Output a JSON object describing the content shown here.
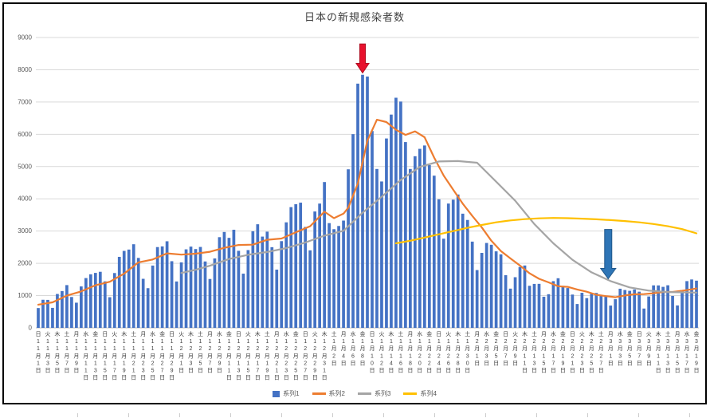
{
  "chart_data": {
    "type": "bar",
    "combo": "bar+line",
    "title": "日本の新規感染者数",
    "grid": true,
    "legend_position": "bottom",
    "y_axis": {
      "min": 0,
      "max": 9000,
      "step": 1000,
      "ticks": [
        "0",
        "1000",
        "2000",
        "3000",
        "4000",
        "5000",
        "6000",
        "7000",
        "8000",
        "9000"
      ]
    },
    "x_axis": {
      "tick_interval_days": 2,
      "ticks": [
        {
          "w": "日",
          "d": "11月1日"
        },
        {
          "w": "火",
          "d": "11月3日"
        },
        {
          "w": "木",
          "d": "11月5日"
        },
        {
          "w": "土",
          "d": "11月7日"
        },
        {
          "w": "月",
          "d": "11月9日"
        },
        {
          "w": "水",
          "d": "11月11日"
        },
        {
          "w": "金",
          "d": "11月13日"
        },
        {
          "w": "日",
          "d": "11月15日"
        },
        {
          "w": "火",
          "d": "11月17日"
        },
        {
          "w": "木",
          "d": "11月19日"
        },
        {
          "w": "土",
          "d": "11月21日"
        },
        {
          "w": "月",
          "d": "11月23日"
        },
        {
          "w": "水",
          "d": "11月25日"
        },
        {
          "w": "金",
          "d": "11月27日"
        },
        {
          "w": "日",
          "d": "11月29日"
        },
        {
          "w": "火",
          "d": "12月1日"
        },
        {
          "w": "木",
          "d": "12月3日"
        },
        {
          "w": "土",
          "d": "12月5日"
        },
        {
          "w": "月",
          "d": "12月7日"
        },
        {
          "w": "水",
          "d": "12月9日"
        },
        {
          "w": "金",
          "d": "12月11日"
        },
        {
          "w": "日",
          "d": "12月13日"
        },
        {
          "w": "火",
          "d": "12月15日"
        },
        {
          "w": "木",
          "d": "12月17日"
        },
        {
          "w": "土",
          "d": "12月19日"
        },
        {
          "w": "月",
          "d": "12月21日"
        },
        {
          "w": "水",
          "d": "12月23日"
        },
        {
          "w": "金",
          "d": "12月25日"
        },
        {
          "w": "日",
          "d": "12月27日"
        },
        {
          "w": "火",
          "d": "12月29日"
        },
        {
          "w": "木",
          "d": "12月31日"
        },
        {
          "w": "土",
          "d": "1月2日"
        },
        {
          "w": "月",
          "d": "1月4日"
        },
        {
          "w": "水",
          "d": "1月6日"
        },
        {
          "w": "金",
          "d": "1月8日"
        },
        {
          "w": "日",
          "d": "1月10日"
        },
        {
          "w": "火",
          "d": "1月12日"
        },
        {
          "w": "木",
          "d": "1月14日"
        },
        {
          "w": "土",
          "d": "1月16日"
        },
        {
          "w": "月",
          "d": "1月18日"
        },
        {
          "w": "水",
          "d": "1月20日"
        },
        {
          "w": "金",
          "d": "1月22日"
        },
        {
          "w": "日",
          "d": "1月24日"
        },
        {
          "w": "火",
          "d": "1月26日"
        },
        {
          "w": "木",
          "d": "1月28日"
        },
        {
          "w": "土",
          "d": "1月30日"
        },
        {
          "w": "月",
          "d": "2月1日"
        },
        {
          "w": "水",
          "d": "2月3日"
        },
        {
          "w": "金",
          "d": "2月5日"
        },
        {
          "w": "日",
          "d": "2月7日"
        },
        {
          "w": "火",
          "d": "2月9日"
        },
        {
          "w": "木",
          "d": "2月11日"
        },
        {
          "w": "土",
          "d": "2月13日"
        },
        {
          "w": "月",
          "d": "2月15日"
        },
        {
          "w": "水",
          "d": "2月17日"
        },
        {
          "w": "金",
          "d": "2月19日"
        },
        {
          "w": "日",
          "d": "2月21日"
        },
        {
          "w": "火",
          "d": "2月23日"
        },
        {
          "w": "木",
          "d": "2月25日"
        },
        {
          "w": "土",
          "d": "2月27日"
        },
        {
          "w": "月",
          "d": "3月1日"
        },
        {
          "w": "水",
          "d": "3月3日"
        },
        {
          "w": "金",
          "d": "3月5日"
        },
        {
          "w": "日",
          "d": "3月7日"
        },
        {
          "w": "火",
          "d": "3月9日"
        },
        {
          "w": "木",
          "d": "3月11日"
        },
        {
          "w": "土",
          "d": "3月13日"
        },
        {
          "w": "月",
          "d": "3月15日"
        },
        {
          "w": "水",
          "d": "3月17日"
        },
        {
          "w": "金",
          "d": "3月19日"
        }
      ]
    },
    "series": [
      {
        "name": "系列1",
        "type": "bar",
        "color": "#4472C4",
        "values": [
          614,
          871,
          867,
          620,
          1050,
          1141,
          1325,
          957,
          780,
          1284,
          1543,
          1660,
          1704,
          1738,
          1441,
          950,
          1699,
          2201,
          2386,
          2427,
          2592,
          2168,
          1520,
          1230,
          1931,
          2504,
          2525,
          2684,
          2066,
          1438,
          2030,
          2434,
          2518,
          2442,
          2508,
          2058,
          1515,
          2152,
          2811,
          2972,
          2790,
          3041,
          2388,
          1680,
          2410,
          2994,
          3211,
          2829,
          2982,
          2501,
          1805,
          2688,
          3271,
          3742,
          3832,
          3881,
          3127,
          2403,
          3607,
          3852,
          4520,
          3246,
          3059,
          3158,
          3325,
          4915,
          6004,
          7570,
          7844,
          7790,
          6102,
          4925,
          4538,
          5870,
          6610,
          7133,
          7014,
          5759,
          4925,
          5320,
          5549,
          5653,
          5045,
          4717,
          3985,
          2764,
          3853,
          3973,
          4133,
          3539,
          3344,
          2673,
          1791,
          2324,
          2631,
          2576,
          2372,
          2279,
          1632,
          1216,
          1570,
          1887,
          1933,
          1304,
          1362,
          1364,
          965,
          1043,
          1448,
          1538,
          1301,
          1234,
          1032,
          739,
          1087,
          922,
          1076,
          1083,
          999,
          988,
          691,
          888,
          1213,
          1173,
          1148,
          1190,
          1121,
          599,
          973,
          1317,
          1316,
          1271,
          1320,
          989,
          695,
          1133,
          1449,
          1500,
          1463
        ]
      },
      {
        "name": "系列2",
        "type": "line",
        "color": "#ED7D31",
        "points": [
          [
            0,
            720
          ],
          [
            3,
            790
          ],
          [
            6,
            1000
          ],
          [
            9,
            1130
          ],
          [
            12,
            1320
          ],
          [
            15,
            1430
          ],
          [
            18,
            1680
          ],
          [
            21,
            2030
          ],
          [
            24,
            2120
          ],
          [
            27,
            2310
          ],
          [
            30,
            2270
          ],
          [
            33,
            2300
          ],
          [
            36,
            2360
          ],
          [
            39,
            2480
          ],
          [
            42,
            2570
          ],
          [
            45,
            2580
          ],
          [
            48,
            2730
          ],
          [
            51,
            2770
          ],
          [
            54,
            2960
          ],
          [
            57,
            3150
          ],
          [
            60,
            3600
          ],
          [
            62,
            3400
          ],
          [
            64,
            3540
          ],
          [
            65,
            3725
          ],
          [
            67,
            4470
          ],
          [
            69,
            5800
          ],
          [
            71,
            6450
          ],
          [
            73,
            6380
          ],
          [
            75,
            6140
          ],
          [
            77,
            5980
          ],
          [
            79,
            6090
          ],
          [
            81,
            5910
          ],
          [
            83,
            5280
          ],
          [
            85,
            4720
          ],
          [
            87,
            4285
          ],
          [
            89,
            3850
          ],
          [
            91,
            3470
          ],
          [
            93,
            3110
          ],
          [
            95,
            2700
          ],
          [
            97,
            2380
          ],
          [
            99,
            2150
          ],
          [
            101,
            1930
          ],
          [
            103,
            1690
          ],
          [
            105,
            1520
          ],
          [
            107,
            1410
          ],
          [
            109,
            1290
          ],
          [
            111,
            1270
          ],
          [
            113,
            1190
          ],
          [
            115,
            1120
          ],
          [
            117,
            1025
          ],
          [
            119,
            985
          ],
          [
            121,
            950
          ],
          [
            123,
            1005
          ],
          [
            125,
            1042
          ],
          [
            127,
            1047
          ],
          [
            129,
            1074
          ],
          [
            131,
            1112
          ],
          [
            133,
            1112
          ],
          [
            135,
            1149
          ],
          [
            137,
            1194
          ],
          [
            138,
            1221
          ]
        ]
      },
      {
        "name": "系列3",
        "type": "line",
        "color": "#A5A5A5",
        "points": [
          [
            30,
            1700
          ],
          [
            33,
            1800
          ],
          [
            36,
            1925
          ],
          [
            40,
            2133
          ],
          [
            44,
            2265
          ],
          [
            48,
            2351
          ],
          [
            52,
            2473
          ],
          [
            56,
            2645
          ],
          [
            60,
            2858
          ],
          [
            64,
            3010
          ],
          [
            68,
            3567
          ],
          [
            72,
            4062
          ],
          [
            76,
            4583
          ],
          [
            80,
            4986
          ],
          [
            84,
            5158
          ],
          [
            88,
            5171
          ],
          [
            92,
            5119
          ],
          [
            96,
            4532
          ],
          [
            100,
            3938
          ],
          [
            104,
            3218
          ],
          [
            108,
            2620
          ],
          [
            112,
            2110
          ],
          [
            116,
            1721
          ],
          [
            120,
            1450
          ],
          [
            124,
            1254
          ],
          [
            128,
            1154
          ],
          [
            132,
            1109
          ],
          [
            138,
            1093
          ]
        ]
      },
      {
        "name": "系列4",
        "type": "line",
        "color": "#FFC000",
        "points": [
          [
            75,
            2620
          ],
          [
            78,
            2700
          ],
          [
            81,
            2800
          ],
          [
            84,
            2900
          ],
          [
            87,
            3000
          ],
          [
            90,
            3100
          ],
          [
            93,
            3190
          ],
          [
            96,
            3270
          ],
          [
            99,
            3330
          ],
          [
            102,
            3370
          ],
          [
            105,
            3395
          ],
          [
            108,
            3408
          ],
          [
            111,
            3400
          ],
          [
            114,
            3385
          ],
          [
            117,
            3365
          ],
          [
            120,
            3340
          ],
          [
            123,
            3310
          ],
          [
            126,
            3270
          ],
          [
            129,
            3220
          ],
          [
            132,
            3150
          ],
          [
            135,
            3060
          ],
          [
            138,
            2930
          ]
        ]
      }
    ],
    "annotations": [
      {
        "id": "red-down-arrow",
        "shape": "block-arrow-down",
        "fill": "#e8112d",
        "stroke": "#b00c20",
        "day_index": 68,
        "value_top": 8800,
        "value_tip": 7900,
        "shaft_w": 7,
        "head_w": 16,
        "head_len": 12
      },
      {
        "id": "blue-down-arrow",
        "shape": "block-arrow-down",
        "fill": "#2e75b6",
        "stroke": "#20578a",
        "day_index": 119.5,
        "value_top": 3050,
        "value_tip": 1520,
        "shaft_w": 9,
        "head_w": 19,
        "head_len": 13
      }
    ]
  },
  "colors": {
    "gridline": "#d9d9d9",
    "axis_line": "#bfbfbf",
    "y_label": "#595959",
    "x_label": "#404040",
    "title": "#404040"
  }
}
